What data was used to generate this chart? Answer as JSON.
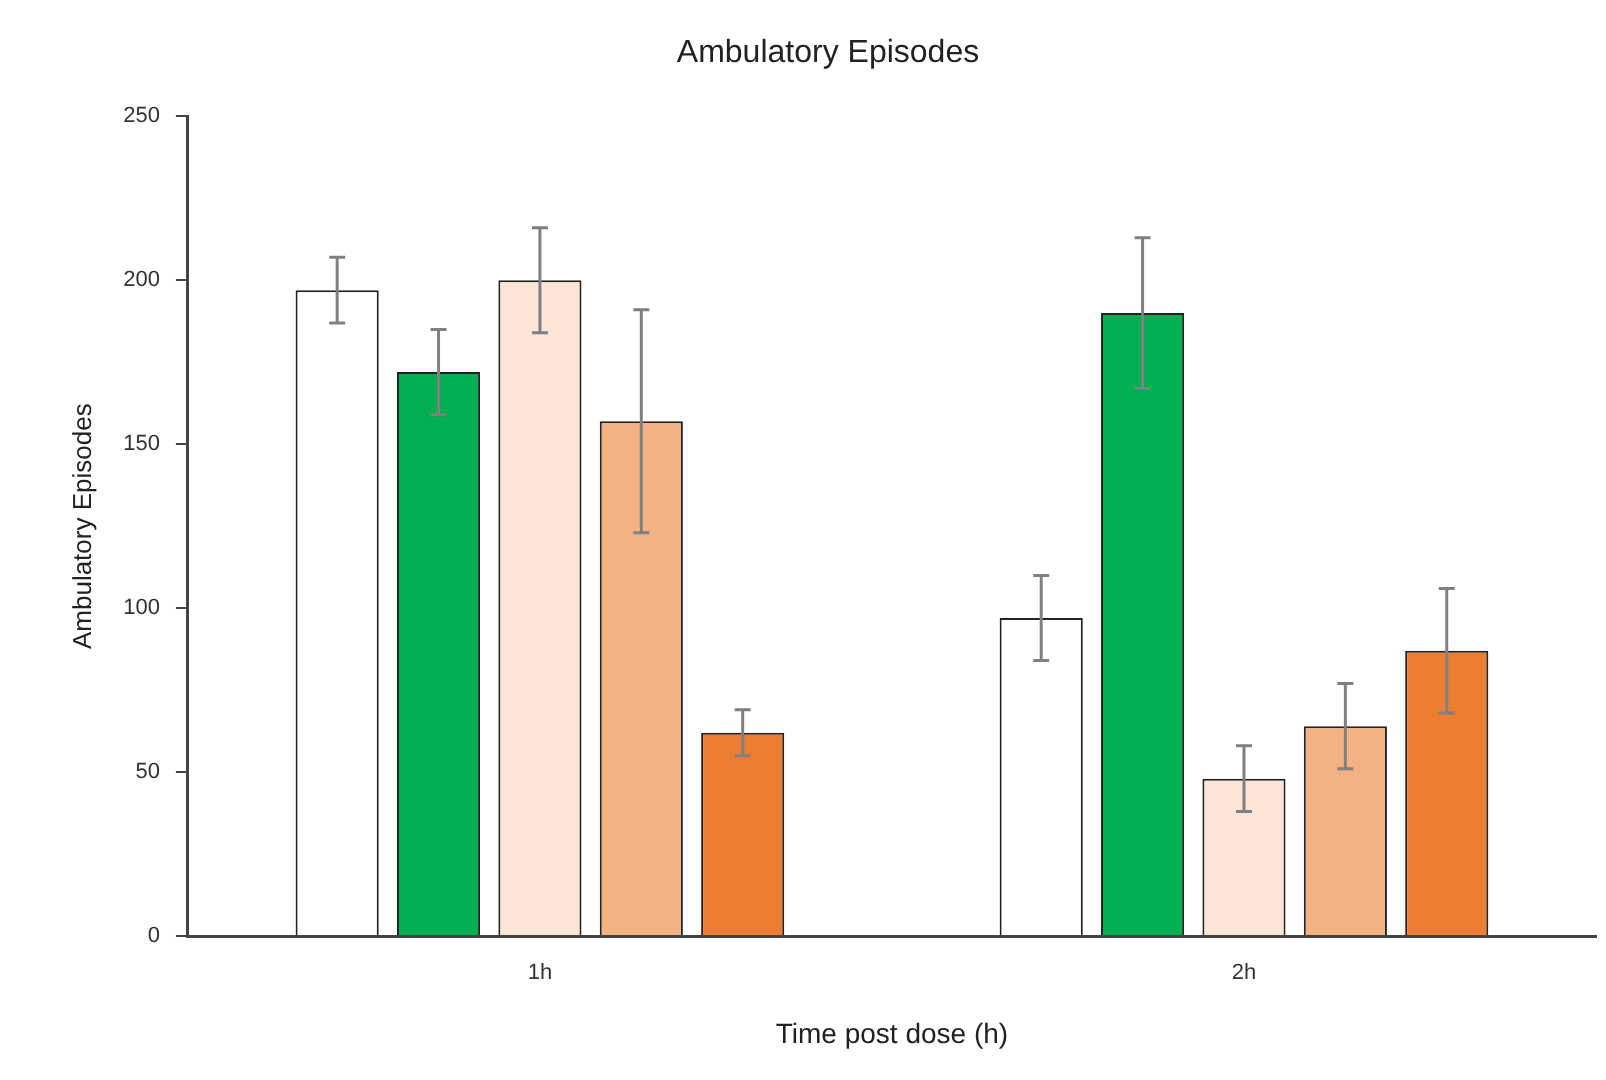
{
  "chart_data": {
    "type": "bar",
    "title": "Ambulatory Episodes",
    "xlabel": "Time post dose (h)",
    "ylabel": "Ambulatory Episodes",
    "categories": [
      "1h",
      "2h"
    ],
    "series": [
      {
        "color": "#ffffff",
        "values": [
          197,
          97
        ],
        "errors": [
          10,
          13
        ]
      },
      {
        "color": "#00b050",
        "values": [
          172,
          190
        ],
        "errors": [
          13,
          23
        ]
      },
      {
        "color": "#fbe5d6",
        "values": [
          200,
          48
        ],
        "errors": [
          16,
          10
        ]
      },
      {
        "color": "#f4b183",
        "values": [
          157,
          64
        ],
        "errors": [
          34,
          13
        ]
      },
      {
        "color": "#ed7d31",
        "values": [
          62,
          87
        ],
        "errors": [
          7,
          19
        ]
      }
    ],
    "ylim": [
      0,
      250
    ],
    "yticks": [
      0,
      50,
      100,
      150,
      200,
      250
    ],
    "grid": false,
    "legend": false
  }
}
